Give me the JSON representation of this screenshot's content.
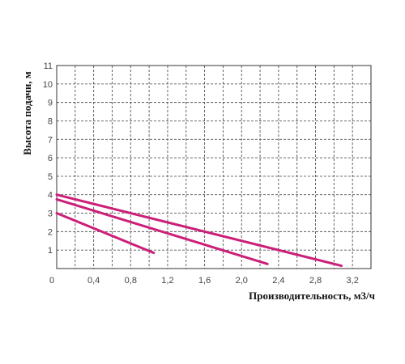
{
  "chart_data": {
    "type": "line",
    "title": "",
    "xlabel": "Производительность, м3/ч",
    "ylabel": "Высота подачи, м",
    "xlim": [
      0,
      3.4
    ],
    "ylim": [
      0,
      11
    ],
    "x_ticks": [
      0,
      0.2,
      0.4,
      0.6,
      0.8,
      1.0,
      1.2,
      1.4,
      1.6,
      1.8,
      2.0,
      2.2,
      2.4,
      2.6,
      2.8,
      3.0,
      3.2,
      3.4
    ],
    "x_tick_labels": [
      {
        "value": 0,
        "label": "0"
      },
      {
        "value": 0.4,
        "label": "0,4"
      },
      {
        "value": 0.8,
        "label": "0,8"
      },
      {
        "value": 1.2,
        "label": "1,2"
      },
      {
        "value": 1.6,
        "label": "1,6"
      },
      {
        "value": 2.0,
        "label": "2,0"
      },
      {
        "value": 2.4,
        "label": "2,4"
      },
      {
        "value": 2.8,
        "label": "2,8"
      },
      {
        "value": 3.2,
        "label": "3,2"
      }
    ],
    "y_tick_labels": [
      {
        "value": 1,
        "label": "1"
      },
      {
        "value": 2,
        "label": "2"
      },
      {
        "value": 3,
        "label": "3"
      },
      {
        "value": 4,
        "label": "4"
      },
      {
        "value": 5,
        "label": "5"
      },
      {
        "value": 6,
        "label": "6"
      },
      {
        "value": 7,
        "label": "7"
      },
      {
        "value": 8,
        "label": "8"
      },
      {
        "value": 9,
        "label": "9"
      },
      {
        "value": 10,
        "label": "10"
      },
      {
        "value": 11,
        "label": "11"
      }
    ],
    "grid": true,
    "legend": "none",
    "series_color": "#cc1f78",
    "series": [
      {
        "points": [
          [
            0,
            3.0
          ],
          [
            1.05,
            0.85
          ]
        ]
      },
      {
        "points": [
          [
            0,
            3.75
          ],
          [
            2.28,
            0.25
          ]
        ]
      },
      {
        "points": [
          [
            0,
            4.0
          ],
          [
            3.08,
            0.15
          ]
        ]
      }
    ]
  }
}
